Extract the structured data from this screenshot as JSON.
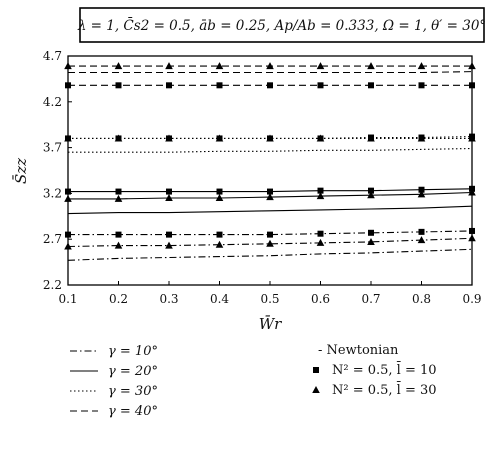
{
  "chart_data": {
    "type": "line",
    "title": "λ = 1, C̄s2 = 0.5, āb = 0.25, Ap/Ab = 0.333, Ω = 1, θ′ = 30°",
    "xlabel": "W̄r",
    "ylabel": "S̄zz",
    "xlim": [
      0.1,
      0.9
    ],
    "ylim": [
      2.2,
      4.7
    ],
    "x_ticks": [
      "0.1",
      "0.2",
      "0.3",
      "0.4",
      "0.5",
      "0.6",
      "0.7",
      "0.8",
      "0.9"
    ],
    "y_ticks": [
      "2.2",
      "2.7",
      "3.2",
      "3.7",
      "4.2",
      "4.7"
    ],
    "x": [
      0.1,
      0.2,
      0.3,
      0.4,
      0.5,
      0.6,
      0.7,
      0.8,
      0.9
    ],
    "grid": false,
    "legend_lines": [
      {
        "label": "γ = 10°",
        "style": "dashdot"
      },
      {
        "label": "γ = 20°",
        "style": "solid"
      },
      {
        "label": "γ = 30°",
        "style": "dotted"
      },
      {
        "label": "γ = 40°",
        "style": "dashed"
      }
    ],
    "legend_markers": [
      {
        "label": "- Newtonian",
        "marker": "none"
      },
      {
        "label": "N² = 0.5, l̄ = 10",
        "marker": "square"
      },
      {
        "label": "N² = 0.5, l̄ = 30",
        "marker": "triangle"
      }
    ],
    "series": [
      {
        "gamma": "10°",
        "case": "Newtonian",
        "style": "dashdot",
        "marker": "none",
        "values": [
          2.47,
          2.49,
          2.5,
          2.51,
          2.52,
          2.54,
          2.55,
          2.57,
          2.59
        ]
      },
      {
        "gamma": "10°",
        "case": "N2=0.5, l=10",
        "style": "dashdot",
        "marker": "square",
        "values": [
          2.75,
          2.75,
          2.75,
          2.75,
          2.75,
          2.76,
          2.77,
          2.78,
          2.79
        ]
      },
      {
        "gamma": "10°",
        "case": "N2=0.5, l=30",
        "style": "dashdot",
        "marker": "triangle",
        "values": [
          2.62,
          2.63,
          2.63,
          2.64,
          2.65,
          2.66,
          2.67,
          2.69,
          2.71
        ]
      },
      {
        "gamma": "20°",
        "case": "Newtonian",
        "style": "solid",
        "marker": "none",
        "values": [
          2.98,
          2.99,
          2.99,
          3.0,
          3.01,
          3.02,
          3.03,
          3.04,
          3.06
        ]
      },
      {
        "gamma": "20°",
        "case": "N2=0.5, l=10",
        "style": "solid",
        "marker": "square",
        "values": [
          3.22,
          3.22,
          3.22,
          3.22,
          3.22,
          3.23,
          3.23,
          3.24,
          3.25
        ]
      },
      {
        "gamma": "20°",
        "case": "N2=0.5, l=30",
        "style": "solid",
        "marker": "triangle",
        "values": [
          3.14,
          3.14,
          3.15,
          3.15,
          3.16,
          3.17,
          3.18,
          3.19,
          3.21
        ]
      },
      {
        "gamma": "30°",
        "case": "Newtonian",
        "style": "dotted",
        "marker": "none",
        "values": [
          3.65,
          3.65,
          3.65,
          3.66,
          3.66,
          3.67,
          3.67,
          3.68,
          3.69
        ]
      },
      {
        "gamma": "30°",
        "case": "N2=0.5, l=10",
        "style": "dotted",
        "marker": "square",
        "values": [
          3.8,
          3.8,
          3.8,
          3.8,
          3.8,
          3.8,
          3.81,
          3.81,
          3.82
        ]
      },
      {
        "gamma": "30°",
        "case": "N2=0.5, l=30",
        "style": "dotted",
        "marker": "triangle",
        "values": [
          3.8,
          3.8,
          3.8,
          3.8,
          3.8,
          3.8,
          3.8,
          3.8,
          3.8
        ]
      },
      {
        "gamma": "40°",
        "case": "Newtonian",
        "style": "dashed",
        "marker": "none",
        "values": [
          4.52,
          4.52,
          4.52,
          4.52,
          4.52,
          4.52,
          4.52,
          4.52,
          4.53
        ]
      },
      {
        "gamma": "40°",
        "case": "N2=0.5, l=10",
        "style": "dashed",
        "marker": "square",
        "values": [
          4.38,
          4.38,
          4.38,
          4.38,
          4.38,
          4.38,
          4.38,
          4.38,
          4.38
        ]
      },
      {
        "gamma": "40°",
        "case": "N2=0.5, l=30",
        "style": "dashed",
        "marker": "triangle",
        "values": [
          4.59,
          4.59,
          4.59,
          4.59,
          4.59,
          4.59,
          4.59,
          4.59,
          4.59
        ]
      }
    ]
  }
}
